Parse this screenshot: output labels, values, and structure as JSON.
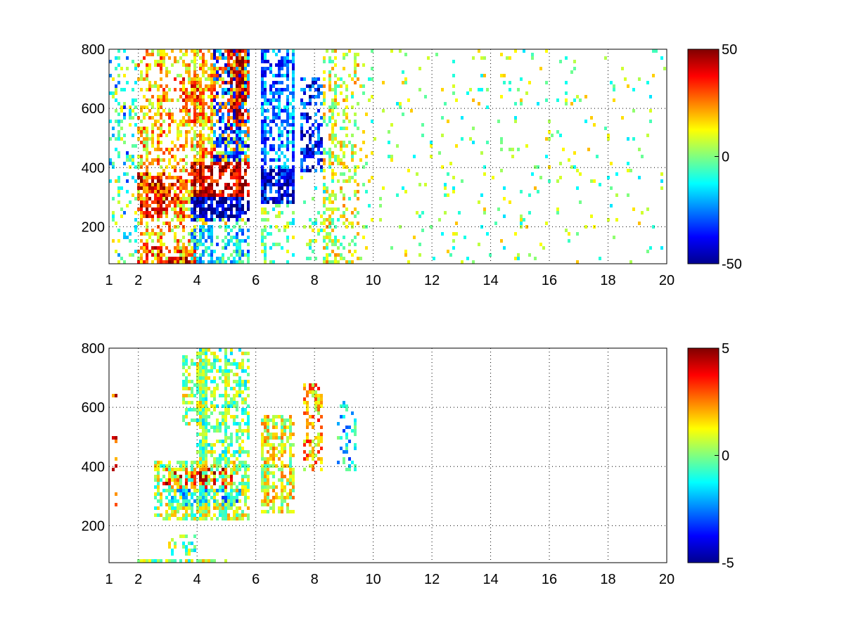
{
  "chart_data": [
    {
      "type": "heatmap",
      "title": "",
      "xlabel": "",
      "ylabel": "",
      "xlim": [
        1,
        20
      ],
      "ylim": [
        75,
        800
      ],
      "x_ticks": [
        1,
        2,
        4,
        6,
        8,
        10,
        12,
        14,
        16,
        18,
        20
      ],
      "y_ticks": [
        200,
        400,
        600,
        800
      ],
      "grid": true,
      "colormap": "jet",
      "clim": [
        -50,
        50
      ],
      "colorbar_ticks": [
        -50,
        0,
        50
      ],
      "regions": [
        {
          "x": [
            1.0,
            2.0
          ],
          "y": [
            75,
            800
          ],
          "value": 0,
          "density": 0.18
        },
        {
          "x": [
            1.0,
            2.0
          ],
          "y": [
            75,
            800
          ],
          "value": -18,
          "density": 0.06
        },
        {
          "x": [
            2.0,
            3.5
          ],
          "y": [
            75,
            800
          ],
          "value": 18,
          "density": 0.45
        },
        {
          "x": [
            2.0,
            3.0
          ],
          "y": [
            230,
            380
          ],
          "value": 35,
          "density": 0.75
        },
        {
          "x": [
            3.0,
            3.7
          ],
          "y": [
            230,
            360
          ],
          "value": 30,
          "density": 0.7
        },
        {
          "x": [
            3.5,
            4.0
          ],
          "y": [
            75,
            800
          ],
          "value": 15,
          "density": 0.5
        },
        {
          "x": [
            3.5,
            4.2
          ],
          "y": [
            540,
            700
          ],
          "value": 28,
          "density": 0.65
        },
        {
          "x": [
            2.0,
            4.0
          ],
          "y": [
            75,
            130
          ],
          "value": 30,
          "density": 0.6
        },
        {
          "x": [
            3.0,
            4.0
          ],
          "y": [
            75,
            100
          ],
          "value": 45,
          "density": 0.6
        },
        {
          "x": [
            3.8,
            5.8
          ],
          "y": [
            220,
            300
          ],
          "value": -45,
          "density": 0.8
        },
        {
          "x": [
            3.8,
            5.8
          ],
          "y": [
            300,
            420
          ],
          "value": 42,
          "density": 0.75
        },
        {
          "x": [
            4.0,
            5.8
          ],
          "y": [
            420,
            800
          ],
          "value": 20,
          "density": 0.55
        },
        {
          "x": [
            4.5,
            5.8
          ],
          "y": [
            420,
            800
          ],
          "value": -30,
          "density": 0.5
        },
        {
          "x": [
            5.0,
            5.8
          ],
          "y": [
            550,
            800
          ],
          "value": 38,
          "density": 0.55
        },
        {
          "x": [
            3.8,
            5.8
          ],
          "y": [
            75,
            200
          ],
          "value": -15,
          "density": 0.45
        },
        {
          "x": [
            4.0,
            5.8
          ],
          "y": [
            200,
            230
          ],
          "value": 5,
          "density": 0.3
        },
        {
          "x": [
            6.2,
            7.3
          ],
          "y": [
            280,
            400
          ],
          "value": -40,
          "density": 0.7
        },
        {
          "x": [
            6.2,
            7.3
          ],
          "y": [
            400,
            800
          ],
          "value": -25,
          "density": 0.5
        },
        {
          "x": [
            6.2,
            7.3
          ],
          "y": [
            75,
            280
          ],
          "value": 0,
          "density": 0.25
        },
        {
          "x": [
            7.5,
            8.3
          ],
          "y": [
            380,
            700
          ],
          "value": -35,
          "density": 0.65
        },
        {
          "x": [
            7.5,
            8.5
          ],
          "y": [
            75,
            380
          ],
          "value": 0,
          "density": 0.2
        },
        {
          "x": [
            8.3,
            9.5
          ],
          "y": [
            75,
            800
          ],
          "value": 8,
          "density": 0.3
        },
        {
          "x": [
            9.5,
            20.0
          ],
          "y": [
            75,
            800
          ],
          "value": 2,
          "density": 0.05
        }
      ]
    },
    {
      "type": "heatmap",
      "title": "",
      "xlabel": "",
      "ylabel": "",
      "xlim": [
        1,
        20
      ],
      "ylim": [
        75,
        800
      ],
      "x_ticks": [
        1,
        2,
        4,
        6,
        8,
        10,
        12,
        14,
        16,
        18,
        20
      ],
      "y_ticks": [
        200,
        400,
        600,
        800
      ],
      "grid": true,
      "colormap": "jet",
      "clim": [
        -5,
        5
      ],
      "colorbar_ticks": [
        -5,
        0,
        5
      ],
      "regions": [
        {
          "x": [
            2.5,
            5.8
          ],
          "y": [
            220,
            420
          ],
          "value": 0.5,
          "density": 0.75
        },
        {
          "x": [
            2.8,
            5.2
          ],
          "y": [
            310,
            400
          ],
          "value": 3.5,
          "density": 0.35
        },
        {
          "x": [
            3.0,
            5.5
          ],
          "y": [
            270,
            320
          ],
          "value": -1.5,
          "density": 0.5
        },
        {
          "x": [
            4.0,
            5.8
          ],
          "y": [
            420,
            800
          ],
          "value": 0,
          "density": 0.6
        },
        {
          "x": [
            3.5,
            4.2
          ],
          "y": [
            540,
            780
          ],
          "value": 0.5,
          "density": 0.45
        },
        {
          "x": [
            2.0,
            5.0
          ],
          "y": [
            75,
            90
          ],
          "value": 0.3,
          "density": 0.85
        },
        {
          "x": [
            3.0,
            4.0
          ],
          "y": [
            100,
            170
          ],
          "value": 0,
          "density": 0.35
        },
        {
          "x": [
            6.2,
            7.3
          ],
          "y": [
            240,
            580
          ],
          "value": 1,
          "density": 0.5
        },
        {
          "x": [
            7.6,
            8.3
          ],
          "y": [
            380,
            680
          ],
          "value": 2,
          "density": 0.65
        },
        {
          "x": [
            8.8,
            9.4
          ],
          "y": [
            380,
            620
          ],
          "value": -1.5,
          "density": 0.3
        },
        {
          "x": [
            1.1,
            1.3
          ],
          "y": [
            220,
            780
          ],
          "value": 3,
          "density": 0.05
        }
      ]
    }
  ]
}
